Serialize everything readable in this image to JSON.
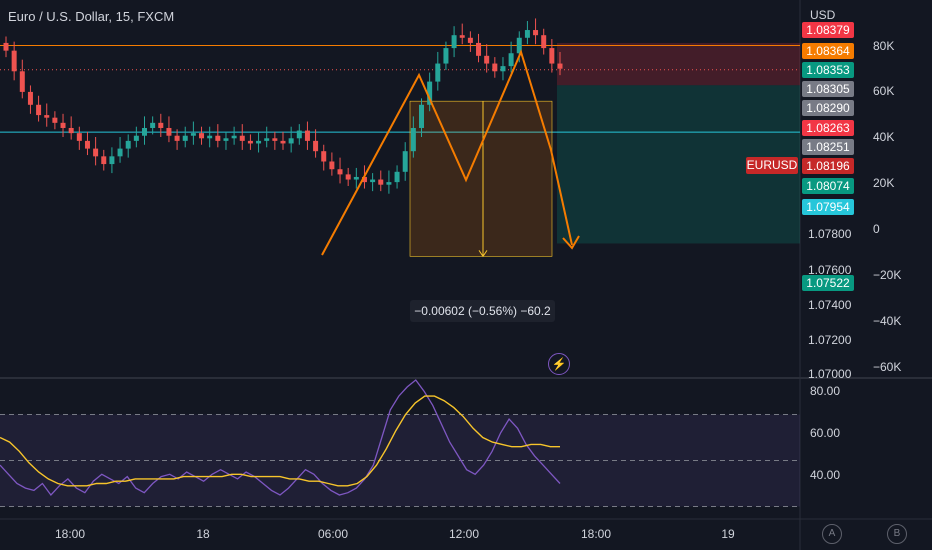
{
  "header": {
    "title": "Euro / U.S. Dollar, 15, FXCM"
  },
  "axis": {
    "currency": "USD",
    "price_ticks": [
      "1.07800",
      "1.07600",
      "1.07400",
      "1.07200",
      "1.07000"
    ],
    "volume_ticks": [
      "80K",
      "60K",
      "40K",
      "20K",
      "0",
      "−20K",
      "−40K",
      "−60K"
    ],
    "rsi_ticks": [
      "80.00",
      "60.00",
      "40.00"
    ],
    "time_ticks": [
      "18:00",
      "18",
      "06:00",
      "12:00",
      "18:00",
      "19"
    ]
  },
  "price_badges": [
    {
      "label": "1.08379",
      "color": "#f23645"
    },
    {
      "label": "1.08364",
      "color": "#f57c00"
    },
    {
      "label": "1.08353",
      "color": "#089981"
    },
    {
      "label": "1.08305",
      "color": "#787b86"
    },
    {
      "label": "1.08290",
      "color": "#787b86"
    },
    {
      "label": "1.08263",
      "color": "#f23645"
    },
    {
      "label": "1.08251",
      "color": "#787b86"
    },
    {
      "label": "1.08196",
      "color": "#c62828"
    },
    {
      "label": "1.08074",
      "color": "#089981"
    },
    {
      "label": "1.07954",
      "color": "#26c6da"
    },
    {
      "label": "1.07522",
      "color": "#089981"
    }
  ],
  "symbol_pill": "EURUSD",
  "measure_label": "−0.00602 (−0.56%) −60.2",
  "bottom_buttons": {
    "auto": "A",
    "b": "B"
  },
  "colors": {
    "up": "#26a69a",
    "down": "#ef5350",
    "drawing": "#f57c00",
    "rsi": "#7e57c2",
    "rsi_ma": "#f7c52b"
  },
  "chart_data": {
    "type": "candlestick",
    "symbol": "EURUSD",
    "interval": "15",
    "source": "FXCM",
    "y_range": [
      1.07,
      1.0842
    ],
    "levels": {
      "orange_resistance": 1.0829,
      "cyan_support": 1.07954,
      "current_price": 1.08196,
      "short_position": {
        "entry": 1.0826,
        "stop": 1.083,
        "target": 1.07522
      }
    },
    "measure": {
      "from": 1.08074,
      "to": 1.07472,
      "change": -0.00602,
      "percent": -0.56,
      "pips": -60.2
    },
    "pattern": "double top",
    "x_labels": [
      "18:00",
      "18",
      "06:00",
      "12:00",
      "18:00",
      "19"
    ],
    "close_series": [
      1.0827,
      1.0819,
      1.0811,
      1.0806,
      1.0802,
      1.0801,
      1.0799,
      1.0797,
      1.0795,
      1.0792,
      1.0789,
      1.0786,
      1.0783,
      1.0786,
      1.0789,
      1.0792,
      1.0794,
      1.0797,
      1.0799,
      1.0797,
      1.0794,
      1.0792,
      1.0794,
      1.0795,
      1.0793,
      1.0794,
      1.0792,
      1.0793,
      1.0794,
      1.0792,
      1.0791,
      1.0792,
      1.0793,
      1.0792,
      1.0791,
      1.0793,
      1.0796,
      1.0792,
      1.0788,
      1.0784,
      1.0781,
      1.0779,
      1.0777,
      1.0778,
      1.0776,
      1.0777,
      1.0775,
      1.0776,
      1.078,
      1.0788,
      1.0797,
      1.0806,
      1.0815,
      1.0822,
      1.0828,
      1.0833,
      1.0832,
      1.083,
      1.0825,
      1.0822,
      1.0819,
      1.0821,
      1.0826,
      1.0832,
      1.0835,
      1.0833,
      1.0828,
      1.0822,
      1.082
    ],
    "rsi": {
      "period": 14,
      "levels": [
        70,
        50,
        30
      ],
      "y_range": [
        25,
        85
      ],
      "values": [
        48,
        44,
        40,
        38,
        37,
        40,
        35,
        39,
        42,
        38,
        36,
        41,
        44,
        42,
        40,
        43,
        38,
        36,
        40,
        43,
        44,
        42,
        45,
        43,
        41,
        44,
        46,
        44,
        42,
        45,
        43,
        40,
        37,
        35,
        38,
        42,
        46,
        44,
        40,
        37,
        35,
        36,
        38,
        42,
        48,
        60,
        72,
        78,
        82,
        85,
        80,
        74,
        66,
        58,
        52,
        46,
        44,
        48,
        54,
        62,
        68,
        64,
        57,
        52,
        48,
        44,
        40
      ],
      "ma_values": [
        60,
        58,
        54,
        49,
        45,
        42,
        40,
        39,
        39,
        39,
        40,
        40,
        41,
        41,
        42,
        42,
        42,
        42,
        42,
        43,
        43,
        43,
        43,
        43,
        44,
        44,
        43,
        43,
        43,
        43,
        42,
        42,
        41,
        41,
        40,
        39,
        39,
        40,
        43,
        48,
        55,
        63,
        70,
        75,
        78,
        78,
        76,
        73,
        69,
        64,
        60,
        58,
        57,
        56,
        56,
        57,
        57,
        56,
        56
      ]
    }
  }
}
